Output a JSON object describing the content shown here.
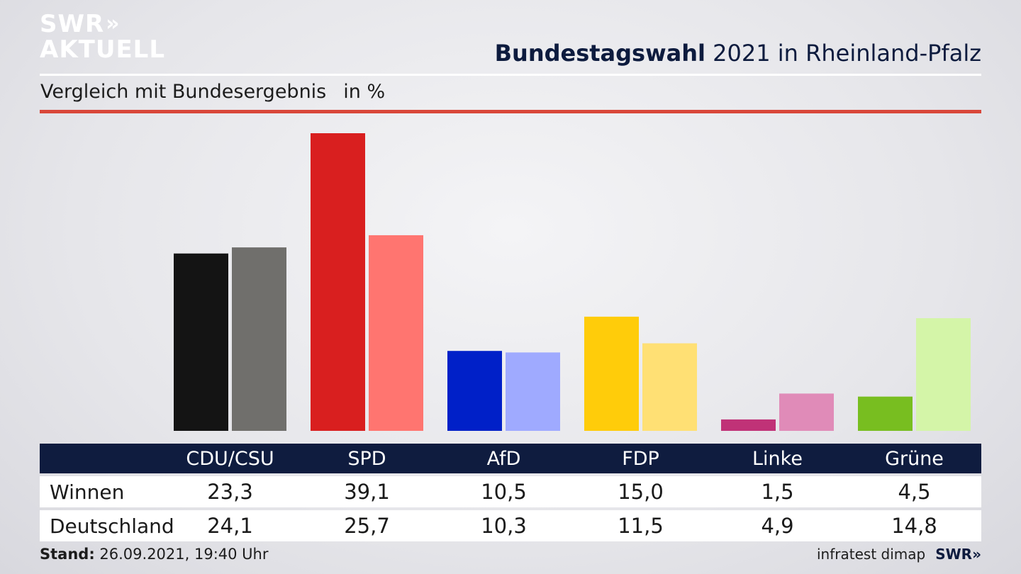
{
  "brand": {
    "line1": "SWR",
    "line2": "AKTUELL",
    "chevron": "»"
  },
  "header": {
    "title_bold": "Bundestagswahl",
    "title_rest": " 2021 in Rheinland-Pfalz",
    "subtitle": "Vergleich mit Bundesergebnis",
    "unit": "in %"
  },
  "footer": {
    "stand_label": "Stand:",
    "stand_value": " 26.09.2021, 19:40 Uhr",
    "source": "infratest dimap",
    "source_brand": "SWR»"
  },
  "chart_data": {
    "type": "bar",
    "title": "Bundestagswahl 2021 in Rheinland-Pfalz",
    "subtitle": "Vergleich mit Bundesergebnis",
    "unit": "in %",
    "categories": [
      "CDU/CSU",
      "SPD",
      "AfD",
      "FDP",
      "Linke",
      "Grüne"
    ],
    "series": [
      {
        "name": "Winnen",
        "values": [
          23.3,
          39.1,
          10.5,
          15.0,
          1.5,
          4.5
        ],
        "labels": [
          "23,3",
          "39,1",
          "10,5",
          "15,0",
          "1,5",
          "4,5"
        ]
      },
      {
        "name": "Deutschland",
        "values": [
          24.1,
          25.7,
          10.3,
          11.5,
          4.9,
          14.8
        ],
        "labels": [
          "24,1",
          "25,7",
          "10,3",
          "11,5",
          "4,9",
          "14,8"
        ]
      }
    ],
    "colors": {
      "Winnen": [
        "#141414",
        "#d91f1f",
        "#0020c8",
        "#ffcc0a",
        "#c03277",
        "#78be20"
      ],
      "Deutschland": [
        "#706f6c",
        "#ff7570",
        "#9faaff",
        "#ffe074",
        "#e08bb8",
        "#d4f5a8"
      ]
    },
    "ylim": [
      0,
      39.1
    ],
    "grid": false,
    "legend": "none"
  }
}
